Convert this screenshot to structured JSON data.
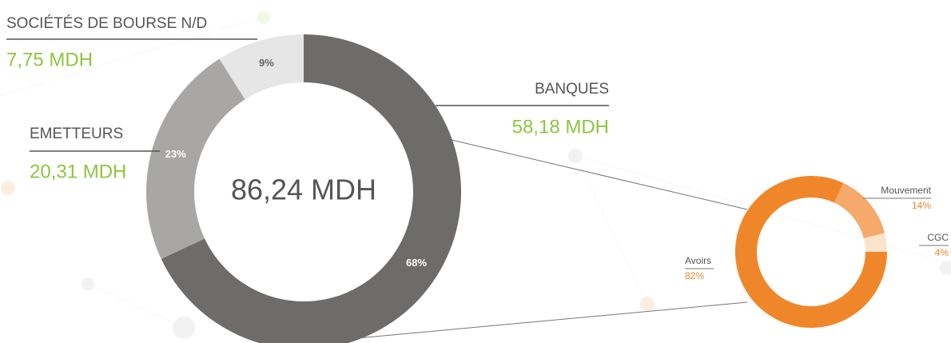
{
  "chart_data": [
    {
      "type": "donut",
      "center_label": "86,24 MDH",
      "categories": [
        "BANQUES",
        "EMETTEURS",
        "SOCIÉTÉS DE BOURSE N/D"
      ],
      "values": [
        68,
        23,
        9
      ],
      "value_labels": [
        "68%",
        "23%",
        "9%"
      ],
      "amounts": [
        58.18,
        20.31,
        7.75
      ],
      "amount_labels": [
        "58,18 MDH",
        "20,31 MDH",
        "7,75 MDH"
      ],
      "colors": [
        "#6d6c6a",
        "#a8a7a5",
        "#e6e6e6"
      ]
    },
    {
      "type": "donut",
      "categories": [
        "Avoirs",
        "Mouvement",
        "CGC"
      ],
      "values": [
        82,
        14,
        4
      ],
      "value_labels": [
        "82%",
        "14%",
        "4%"
      ],
      "colors": [
        "#f0862a",
        "#f5a96a",
        "#fbe3cc"
      ]
    }
  ]
}
